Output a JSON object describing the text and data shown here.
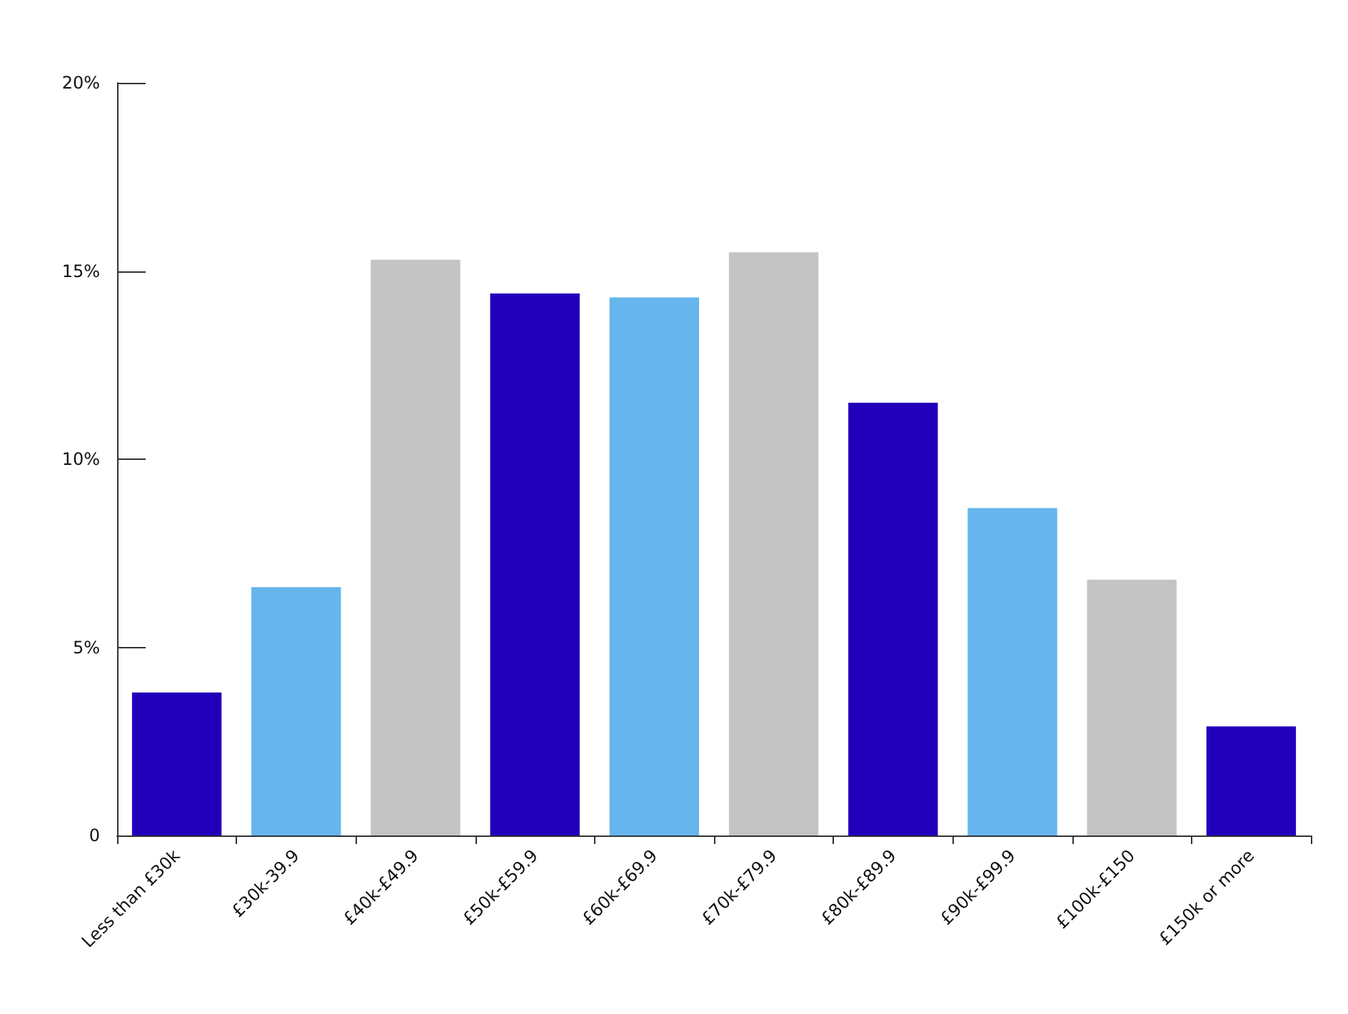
{
  "chart_data": {
    "type": "bar",
    "categories": [
      "Less than £30k",
      "£30k-39.9",
      "£40k-£49.9",
      "£50k-£59.9",
      "£60k-£69.9",
      "£70k-£79.9",
      "£80k-£89.9",
      "£90k-£99.9",
      "£100k-£150",
      "£150k or more"
    ],
    "values": [
      3.8,
      6.6,
      15.3,
      14.4,
      14.3,
      15.5,
      11.5,
      8.7,
      6.8,
      2.9
    ],
    "colors": [
      "#2200bb",
      "#66b5ec",
      "#c4c4c4",
      "#2200bb",
      "#66b5ec",
      "#c4c4c4",
      "#2200bb",
      "#66b5ec",
      "#c4c4c4",
      "#2200bb"
    ],
    "ylim": [
      0,
      20
    ],
    "yticks": [
      0,
      {
        "value": 5,
        "label": "5%"
      },
      {
        "value": 10,
        "label": "10%"
      },
      {
        "value": 15,
        "label": "15%"
      },
      {
        "value": 20,
        "label": "20%"
      }
    ],
    "grid": false
  }
}
